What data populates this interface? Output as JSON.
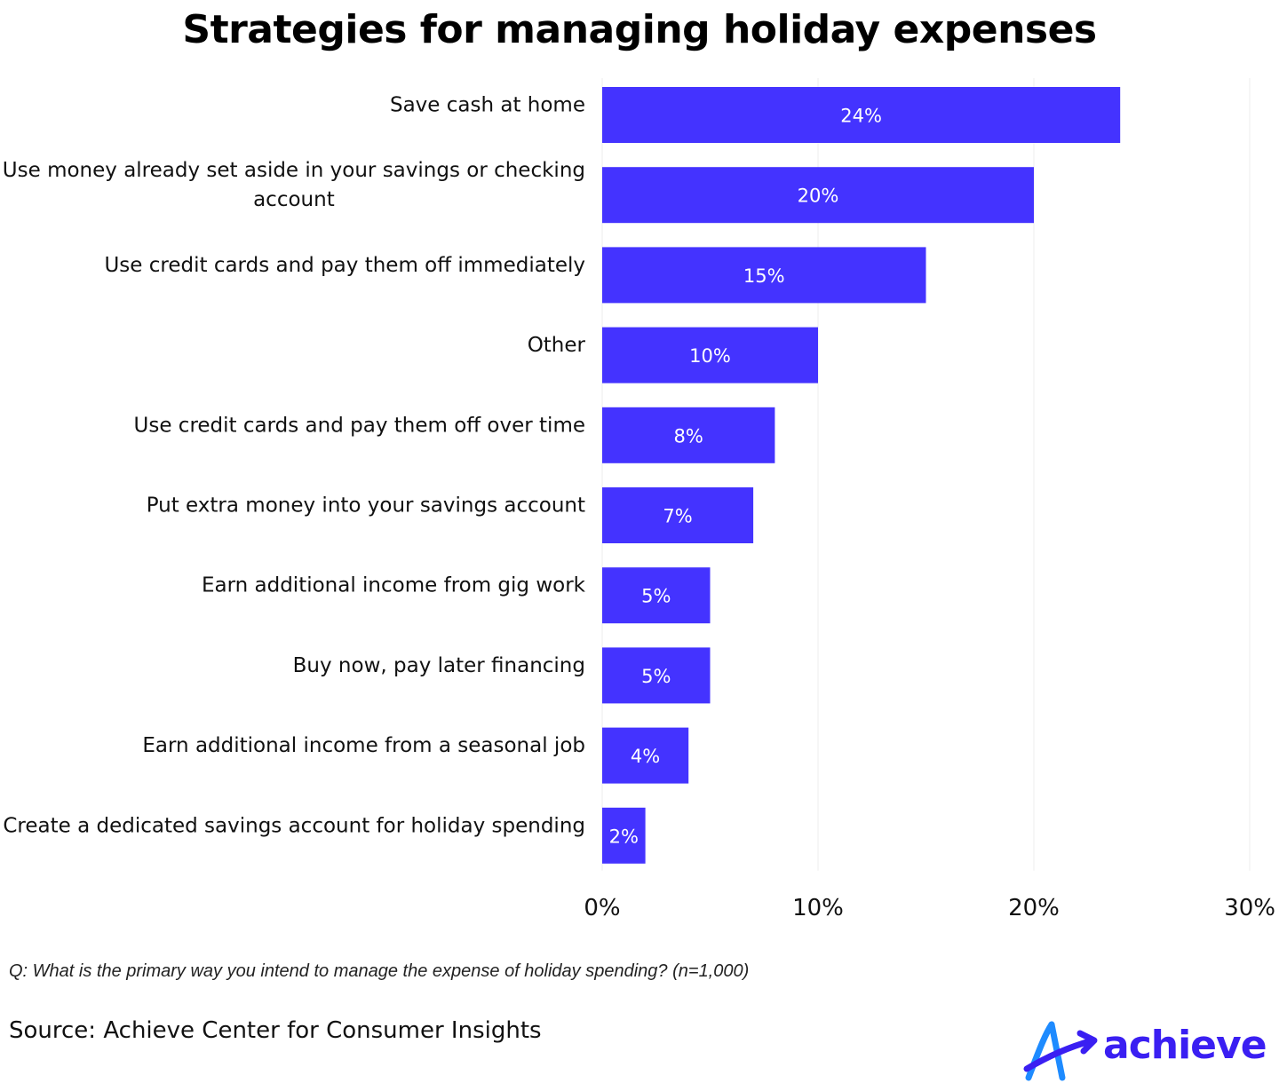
{
  "chart_data": {
    "type": "bar",
    "orientation": "horizontal",
    "title": "Strategies for managing holiday expenses",
    "categories": [
      "Save cash at home",
      "Use money already set aside in your savings or checking account",
      "Use credit cards and pay them off immediately",
      "Other",
      "Use credit cards and pay them off over time",
      "Put extra money into your savings account",
      "Earn additional income from gig work",
      "Buy now, pay later financing",
      "Earn additional income from a seasonal job",
      "Create a dedicated savings account for holiday spending"
    ],
    "category_lines": [
      [
        "Save cash at home"
      ],
      [
        "Use money already set aside in your savings or checking",
        "account"
      ],
      [
        "Use credit cards and pay them off immediately"
      ],
      [
        "Other"
      ],
      [
        "Use credit cards and pay them off over time"
      ],
      [
        "Put extra money into your savings account"
      ],
      [
        "Earn additional income from gig work"
      ],
      [
        "Buy now, pay later financing"
      ],
      [
        "Earn additional income from a seasonal job"
      ],
      [
        "Create a dedicated savings account for holiday spending"
      ]
    ],
    "values": [
      24,
      20,
      15,
      10,
      8,
      7,
      5,
      5,
      4,
      2
    ],
    "data_labels": [
      "24%",
      "20%",
      "15%",
      "10%",
      "8%",
      "7%",
      "5%",
      "5%",
      "4%",
      "2%"
    ],
    "xlim": [
      0,
      30
    ],
    "xticks": [
      0,
      10,
      20,
      30
    ],
    "xtick_labels": [
      "0%",
      "10%",
      "20%",
      "30%"
    ],
    "xlabel": "",
    "ylabel": "",
    "grid": "vertical",
    "bar_color": "#4433FF",
    "label_color": "#FFFFFF"
  },
  "footer": {
    "question": "Q: What is the primary way you intend to manage the expense of holiday spending? (n=1,000)",
    "source": "Source: Achieve Center for Consumer Insights"
  },
  "logo": {
    "text": "achieve",
    "text_color": "#3A1FF2",
    "mark_colors": [
      "#1E8BFF",
      "#3A1FF2"
    ]
  }
}
